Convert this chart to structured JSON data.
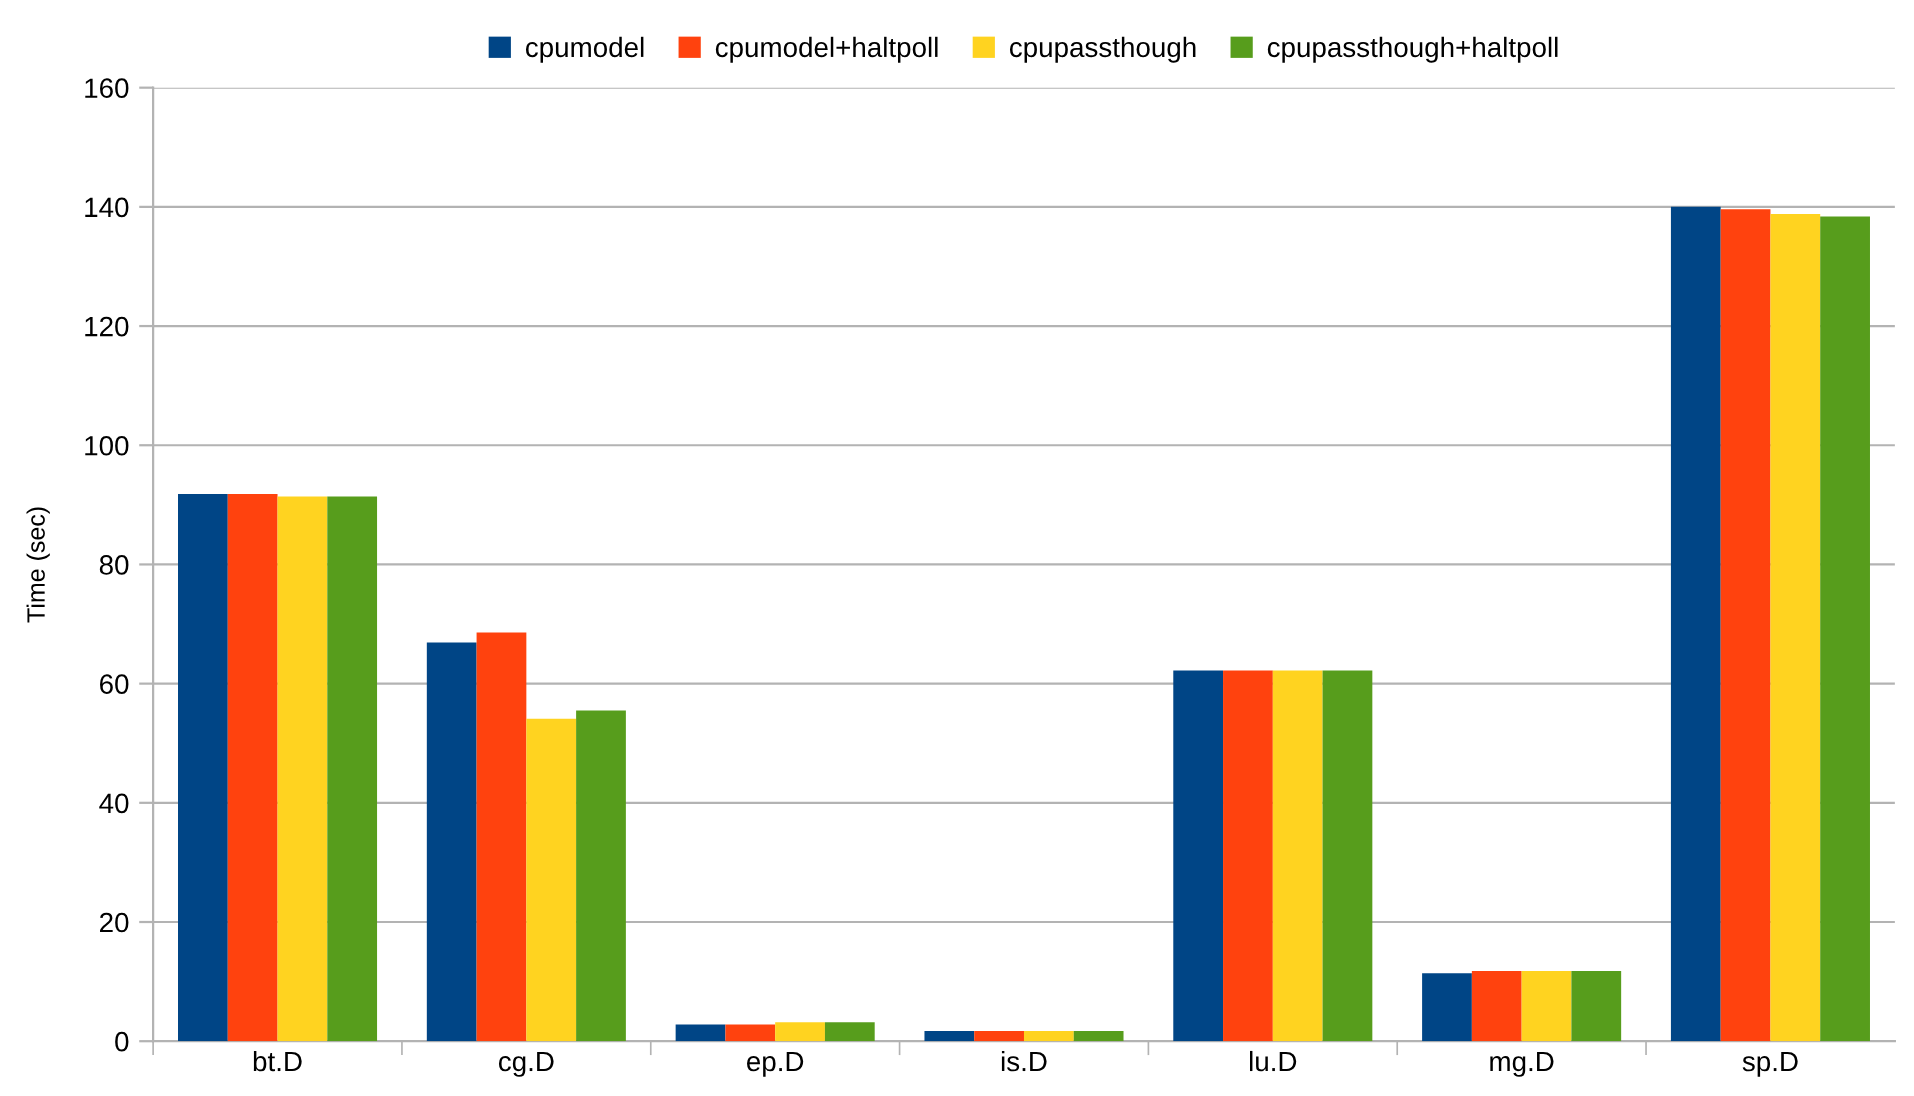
{
  "chart_data": {
    "type": "bar",
    "ylabel": "Time (sec)",
    "categories": [
      "bt.D",
      "cg.D",
      "ep.D",
      "is.D",
      "lu.D",
      "mg.D",
      "sp.D"
    ],
    "series": [
      {
        "name": "cpumodel",
        "color": "#004586",
        "values": [
          91.8,
          66.9,
          2.8,
          1.7,
          62.2,
          11.4,
          140.0
        ]
      },
      {
        "name": "cpumodel+haltpoll",
        "color": "#ff420e",
        "values": [
          91.8,
          68.6,
          2.8,
          1.7,
          62.2,
          11.8,
          139.6
        ]
      },
      {
        "name": "cpupassthough",
        "color": "#ffd320",
        "values": [
          91.4,
          54.1,
          3.2,
          1.7,
          62.2,
          11.8,
          138.8
        ]
      },
      {
        "name": "cpupassthough+haltpoll",
        "color": "#579d1c",
        "values": [
          91.4,
          55.5,
          3.2,
          1.7,
          62.2,
          11.8,
          138.4
        ]
      }
    ],
    "ylim": [
      0,
      160
    ],
    "yticks": [
      0,
      20,
      40,
      60,
      80,
      100,
      120,
      140,
      160
    ],
    "grid": "y",
    "legend": "top"
  }
}
